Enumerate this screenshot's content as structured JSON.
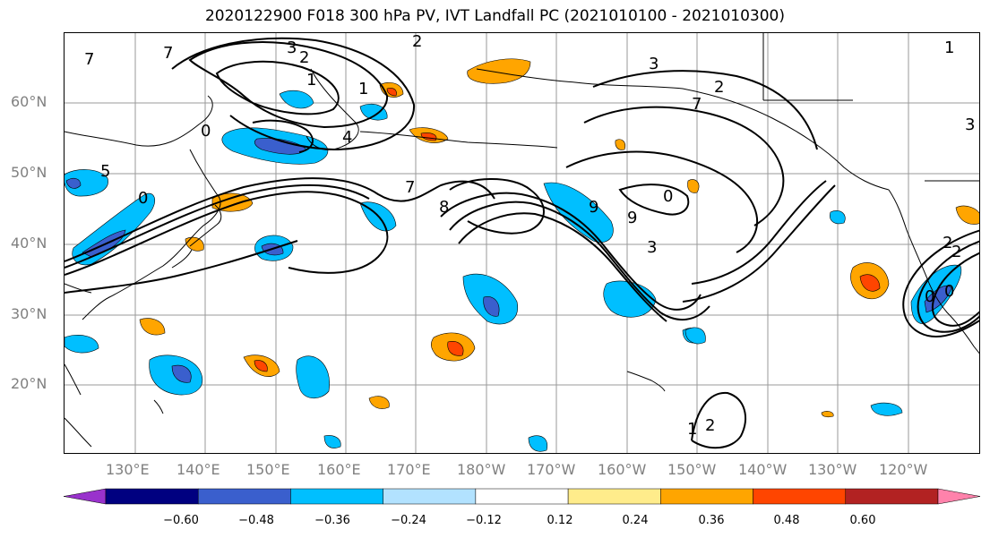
{
  "title": "2020122900 F018 300 hPa PV, IVT Landfall PC (2021010100 - 2021010300)",
  "map": {
    "lat_labels": [
      "60°N",
      "50°N",
      "40°N",
      "30°N",
      "20°N"
    ],
    "lon_labels": [
      "130°E",
      "140°E",
      "150°E",
      "160°E",
      "170°E",
      "180°W",
      "170°W",
      "160°W",
      "150°W",
      "140°W",
      "130°W",
      "120°W"
    ],
    "contour_labels": [
      "3",
      "2",
      "7",
      "1",
      "1",
      "2",
      "4",
      "0",
      "5",
      "0",
      "7",
      "8",
      "9",
      "0",
      "9",
      "7",
      "3",
      "2",
      "3",
      "1",
      "2",
      "0",
      "0",
      "1",
      "2",
      "7",
      "3",
      "2"
    ]
  },
  "colorbar": {
    "labels": [
      "−0.60",
      "−0.48",
      "−0.36",
      "−0.24",
      "−0.12",
      "0.12",
      "0.24",
      "0.36",
      "0.48",
      "0.60"
    ],
    "colors": [
      "#9932cc",
      "#000080",
      "#3a5fcd",
      "#00bfff",
      "#b2e2ff",
      "#ffffff",
      "#ffec8b",
      "#ffa500",
      "#ff4500",
      "#b22222",
      "#ff82ab"
    ]
  }
}
